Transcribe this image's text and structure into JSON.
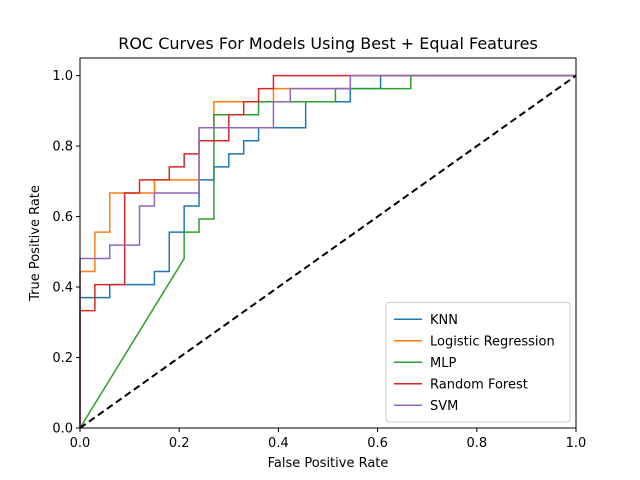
{
  "chart_data": {
    "type": "line",
    "title": "ROC Curves For Models Using Best + Equal Features",
    "xlabel": "False Positive Rate",
    "ylabel": "True Positive Rate",
    "xlim": [
      0,
      1
    ],
    "ylim": [
      0,
      1.05
    ],
    "xticks": [
      "0.0",
      "0.2",
      "0.4",
      "0.6",
      "0.8",
      "1.0"
    ],
    "yticks": [
      "0.0",
      "0.2",
      "0.4",
      "0.6",
      "0.8",
      "1.0"
    ],
    "grid": false,
    "legend_position": "lower right",
    "series": [
      {
        "name": "KNN",
        "color": "#1f77b4",
        "x": [
          0,
          0,
          0.03,
          0.03,
          0.06,
          0.06,
          0.15,
          0.15,
          0.18,
          0.18,
          0.21,
          0.21,
          0.24,
          0.24,
          0.27,
          0.27,
          0.3,
          0.3,
          0.33,
          0.33,
          0.36,
          0.36,
          0.39,
          0.39,
          0.455,
          0.455,
          0.545,
          0.545,
          0.606,
          0.606,
          1.0
        ],
        "y": [
          0,
          0.37,
          0.37,
          0.37,
          0.37,
          0.407,
          0.407,
          0.444,
          0.444,
          0.556,
          0.556,
          0.63,
          0.63,
          0.704,
          0.704,
          0.741,
          0.741,
          0.778,
          0.778,
          0.815,
          0.815,
          0.852,
          0.852,
          0.852,
          0.852,
          0.926,
          0.926,
          0.963,
          0.963,
          1.0,
          1.0
        ]
      },
      {
        "name": "Logistic Regression",
        "color": "#ff7f0e",
        "x": [
          0,
          0,
          0.03,
          0.03,
          0.06,
          0.06,
          0.15,
          0.15,
          0.24,
          0.24,
          0.27,
          0.27,
          0.36,
          0.36,
          0.39,
          0.39,
          0.545,
          0.545,
          1.0
        ],
        "y": [
          0,
          0.444,
          0.444,
          0.556,
          0.556,
          0.667,
          0.667,
          0.704,
          0.704,
          0.852,
          0.852,
          0.926,
          0.926,
          0.926,
          0.926,
          0.963,
          0.963,
          1.0,
          1.0
        ]
      },
      {
        "name": "MLP",
        "color": "#2ca02c",
        "x": [
          0,
          0.21,
          0.21,
          0.24,
          0.24,
          0.27,
          0.27,
          0.36,
          0.36,
          0.515,
          0.515,
          0.667,
          0.667,
          1.0
        ],
        "y": [
          0,
          0.481,
          0.556,
          0.556,
          0.593,
          0.593,
          0.889,
          0.889,
          0.926,
          0.926,
          0.963,
          0.963,
          1.0,
          1.0
        ]
      },
      {
        "name": "Random Forest",
        "color": "#d62728",
        "x": [
          0,
          0,
          0.03,
          0.03,
          0.09,
          0.09,
          0.12,
          0.12,
          0.18,
          0.18,
          0.21,
          0.21,
          0.24,
          0.24,
          0.3,
          0.3,
          0.33,
          0.33,
          0.36,
          0.36,
          0.39,
          0.39,
          1.0
        ],
        "y": [
          0,
          0.333,
          0.333,
          0.407,
          0.407,
          0.667,
          0.667,
          0.704,
          0.704,
          0.741,
          0.741,
          0.778,
          0.778,
          0.815,
          0.815,
          0.889,
          0.889,
          0.926,
          0.926,
          0.963,
          0.963,
          1.0,
          1.0
        ]
      },
      {
        "name": "SVM",
        "color": "#9467bd",
        "x": [
          0,
          0,
          0.06,
          0.06,
          0.12,
          0.12,
          0.15,
          0.15,
          0.24,
          0.24,
          0.39,
          0.39,
          0.424,
          0.424,
          0.545,
          0.545,
          1.0
        ],
        "y": [
          0,
          0.481,
          0.481,
          0.519,
          0.519,
          0.63,
          0.63,
          0.667,
          0.667,
          0.852,
          0.852,
          0.926,
          0.926,
          0.963,
          0.963,
          1.0,
          1.0
        ]
      },
      {
        "name": "",
        "color": "#000000",
        "dashed": true,
        "x": [
          0,
          1
        ],
        "y": [
          0,
          1
        ]
      }
    ]
  }
}
